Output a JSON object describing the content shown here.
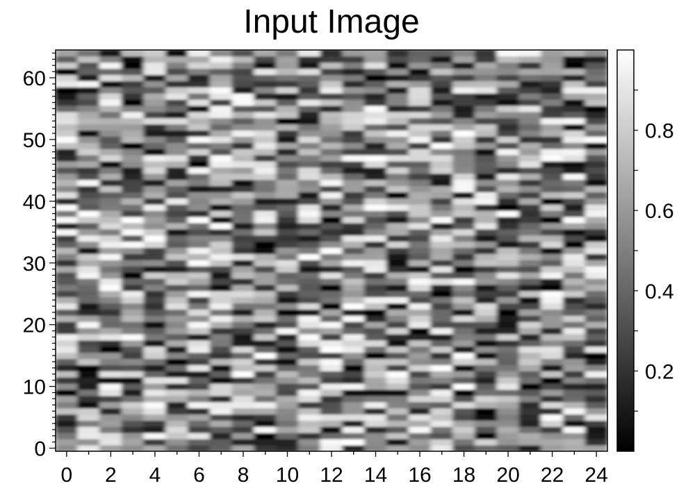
{
  "chart_data": {
    "type": "heatmap",
    "title": "Input Image",
    "xlabel": "",
    "ylabel": "",
    "colormap": "gray",
    "n_cols": 25,
    "n_rows": 65,
    "value_range": [
      0.0,
      1.0
    ],
    "xlim": [
      -0.5,
      24.5
    ],
    "ylim": [
      -0.5,
      64.5
    ],
    "x_ticks": [
      0,
      2,
      4,
      6,
      8,
      10,
      12,
      14,
      16,
      18,
      20,
      22,
      24
    ],
    "x_tick_labels": [
      "0",
      "2",
      "4",
      "6",
      "8",
      "10",
      "12",
      "14",
      "16",
      "18",
      "20",
      "22",
      "24"
    ],
    "y_ticks": [
      0,
      10,
      20,
      30,
      40,
      50,
      60
    ],
    "y_tick_labels": [
      "0",
      "10",
      "20",
      "30",
      "40",
      "50",
      "60"
    ],
    "colorbar": {
      "range": [
        0.0,
        1.0
      ],
      "ticks": [
        0.2,
        0.4,
        0.6,
        0.8
      ],
      "tick_labels": [
        "0.2",
        "0.4",
        "0.6",
        "0.8"
      ],
      "colors": [
        "#000000",
        "#ffffff"
      ]
    },
    "grid": false,
    "interpolation": "smooth",
    "note_values": "pixel intensities approximate random noise in [0,1]"
  }
}
